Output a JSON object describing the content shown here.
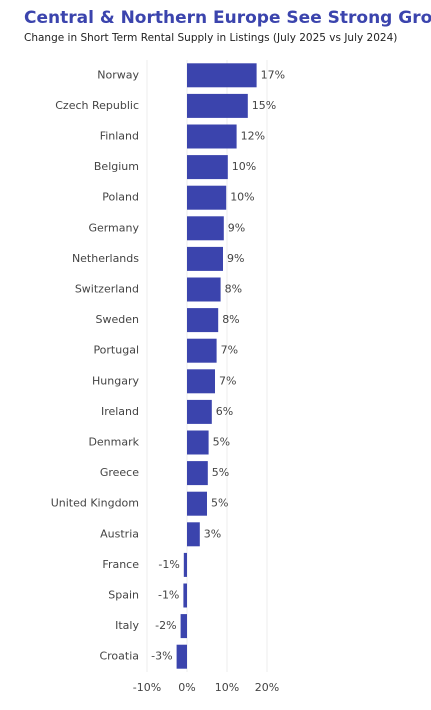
{
  "chart_data": {
    "type": "hbar",
    "title": "Central & Northern Europe See Strong Growth",
    "subtitle": "Change in Short Term Rental Supply in Listings  (July 2025 vs July 2024)",
    "categories": [
      "Norway",
      "Czech Republic",
      "Finland",
      "Belgium",
      "Poland",
      "Germany",
      "Netherlands",
      "Switzerland",
      "Sweden",
      "Portugal",
      "Hungary",
      "Ireland",
      "Denmark",
      "Greece",
      "United Kingdom",
      "Austria",
      "France",
      "Spain",
      "Italy",
      "Croatia"
    ],
    "values": [
      17.4,
      15.2,
      12.4,
      10.2,
      9.8,
      9.2,
      9.0,
      8.4,
      7.8,
      7.4,
      7.0,
      6.2,
      5.4,
      5.2,
      5.0,
      3.2,
      -0.8,
      -0.9,
      -1.6,
      -2.6
    ],
    "value_labels": [
      "17%",
      "15%",
      "12%",
      "10%",
      "10%",
      "9%",
      "9%",
      "8%",
      "8%",
      "7%",
      "7%",
      "6%",
      "5%",
      "5%",
      "5%",
      "3%",
      "-1%",
      "-1%",
      "-2%",
      "-3%"
    ],
    "color": "#3b44ad",
    "xlim": [
      -10,
      22
    ],
    "xticks": [
      {
        "value": -10,
        "label": "-10%"
      },
      {
        "value": 0,
        "label": "0%"
      },
      {
        "value": 10,
        "label": "10%"
      },
      {
        "value": 20,
        "label": "20%"
      }
    ],
    "grid": true
  }
}
